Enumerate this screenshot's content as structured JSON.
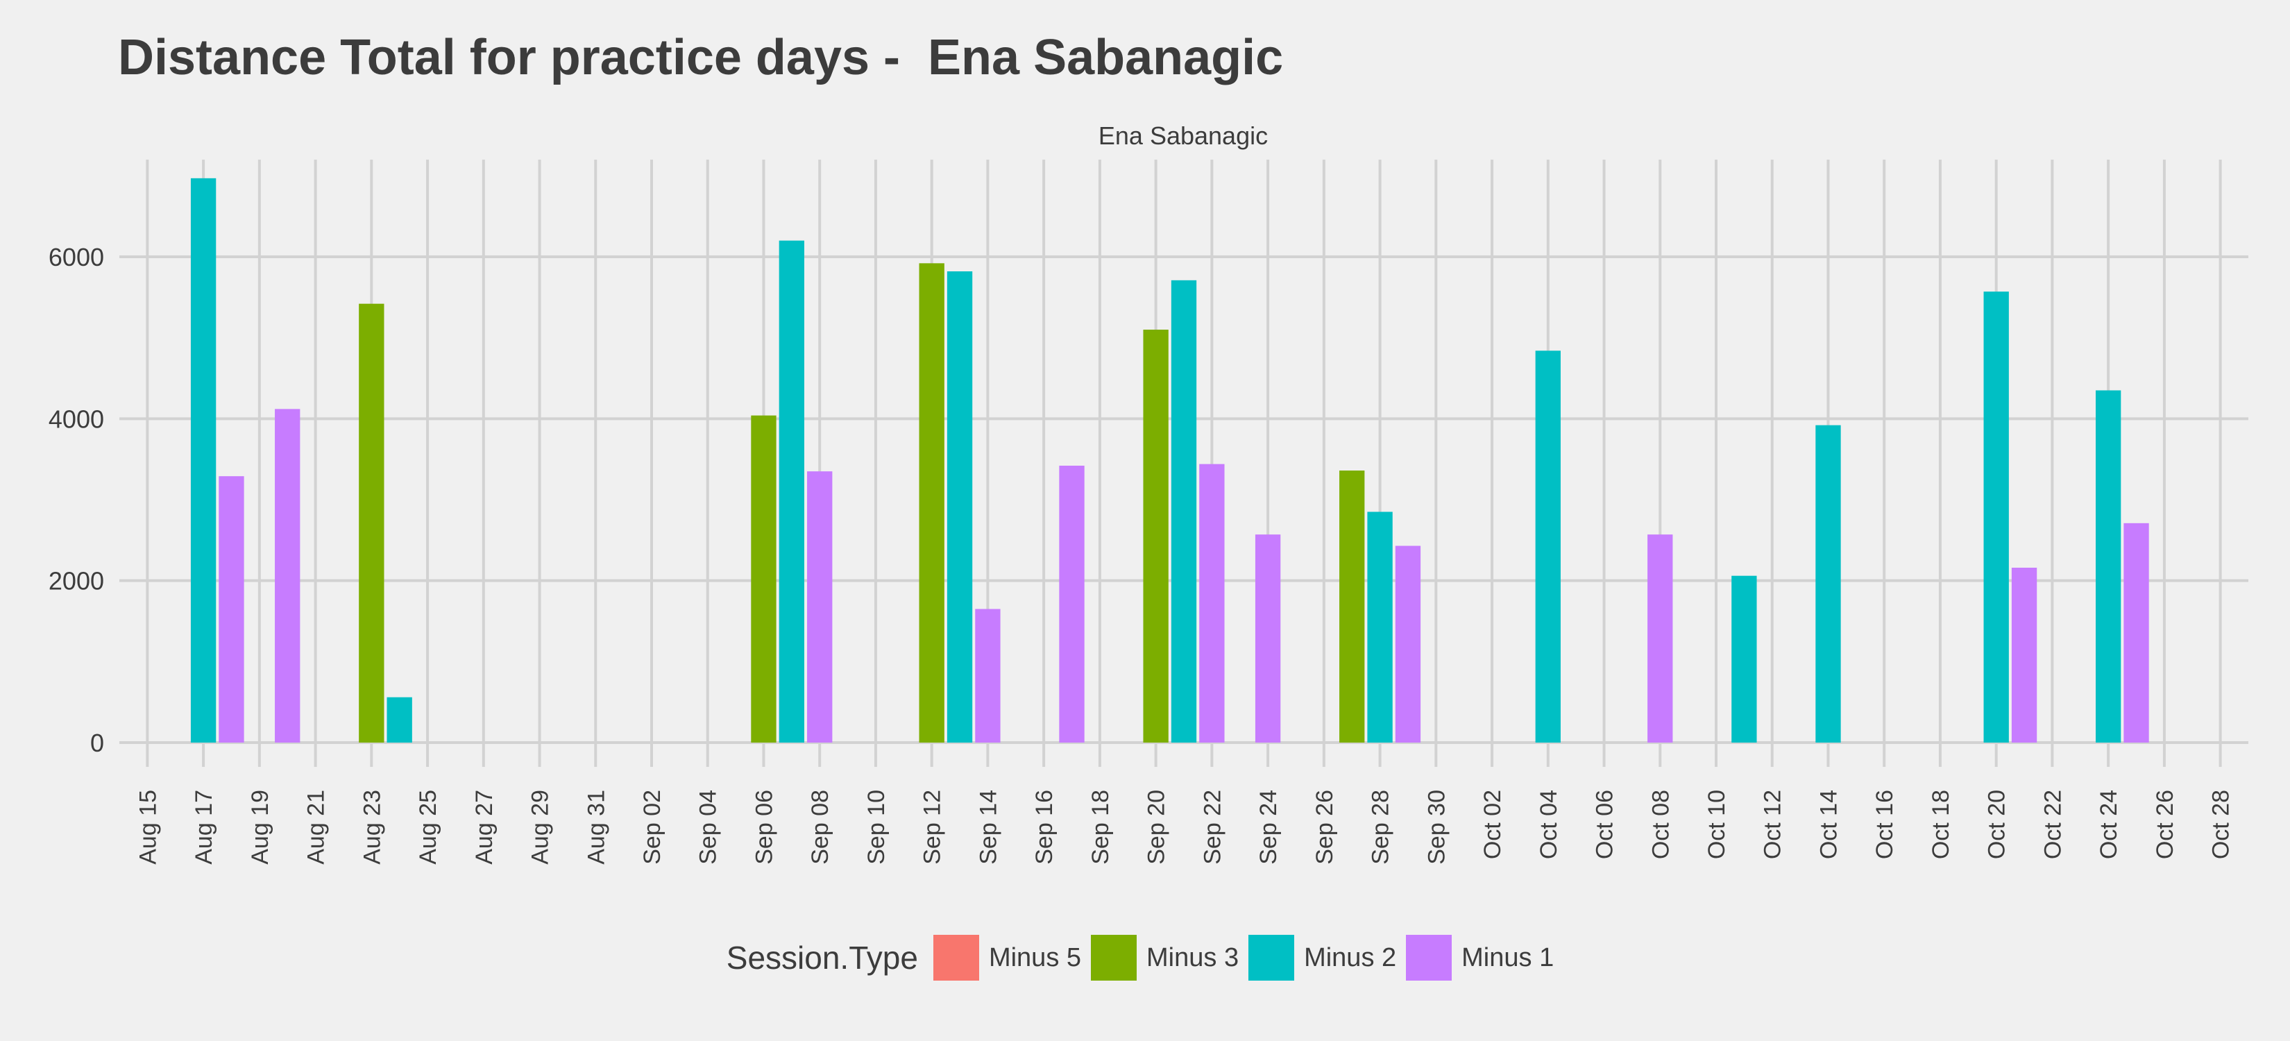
{
  "chart_data": {
    "type": "bar",
    "title": "Distance Total for practice days -  Ena Sabanagic",
    "facet_label": "Ena Sabanagic",
    "xlabel": "",
    "ylabel": "",
    "x_axis": "date",
    "x_range": [
      "2018-08-14",
      "2018-10-29"
    ],
    "x_ticks": [
      {
        "date": "2018-08-15",
        "label": "Aug 15"
      },
      {
        "date": "2018-08-17",
        "label": "Aug 17"
      },
      {
        "date": "2018-08-19",
        "label": "Aug 19"
      },
      {
        "date": "2018-08-21",
        "label": "Aug 21"
      },
      {
        "date": "2018-08-23",
        "label": "Aug 23"
      },
      {
        "date": "2018-08-25",
        "label": "Aug 25"
      },
      {
        "date": "2018-08-27",
        "label": "Aug 27"
      },
      {
        "date": "2018-08-29",
        "label": "Aug 29"
      },
      {
        "date": "2018-08-31",
        "label": "Aug 31"
      },
      {
        "date": "2018-09-02",
        "label": "Sep 02"
      },
      {
        "date": "2018-09-04",
        "label": "Sep 04"
      },
      {
        "date": "2018-09-06",
        "label": "Sep 06"
      },
      {
        "date": "2018-09-08",
        "label": "Sep 08"
      },
      {
        "date": "2018-09-10",
        "label": "Sep 10"
      },
      {
        "date": "2018-09-12",
        "label": "Sep 12"
      },
      {
        "date": "2018-09-14",
        "label": "Sep 14"
      },
      {
        "date": "2018-09-16",
        "label": "Sep 16"
      },
      {
        "date": "2018-09-18",
        "label": "Sep 18"
      },
      {
        "date": "2018-09-20",
        "label": "Sep 20"
      },
      {
        "date": "2018-09-22",
        "label": "Sep 22"
      },
      {
        "date": "2018-09-24",
        "label": "Sep 24"
      },
      {
        "date": "2018-09-26",
        "label": "Sep 26"
      },
      {
        "date": "2018-09-28",
        "label": "Sep 28"
      },
      {
        "date": "2018-09-30",
        "label": "Sep 30"
      },
      {
        "date": "2018-10-02",
        "label": "Oct 02"
      },
      {
        "date": "2018-10-04",
        "label": "Oct 04"
      },
      {
        "date": "2018-10-06",
        "label": "Oct 06"
      },
      {
        "date": "2018-10-08",
        "label": "Oct 08"
      },
      {
        "date": "2018-10-10",
        "label": "Oct 10"
      },
      {
        "date": "2018-10-12",
        "label": "Oct 12"
      },
      {
        "date": "2018-10-14",
        "label": "Oct 14"
      },
      {
        "date": "2018-10-16",
        "label": "Oct 16"
      },
      {
        "date": "2018-10-18",
        "label": "Oct 18"
      },
      {
        "date": "2018-10-20",
        "label": "Oct 20"
      },
      {
        "date": "2018-10-22",
        "label": "Oct 22"
      },
      {
        "date": "2018-10-24",
        "label": "Oct 24"
      },
      {
        "date": "2018-10-26",
        "label": "Oct 26"
      },
      {
        "date": "2018-10-28",
        "label": "Oct 28"
      }
    ],
    "ylim": [
      -300,
      7200
    ],
    "y_ticks": [
      0,
      2000,
      4000,
      6000
    ],
    "grid": true,
    "legend_position": "bottom",
    "legend_title": "Session.Type",
    "series": [
      {
        "name": "Minus 5",
        "color": "#F8766D",
        "points": []
      },
      {
        "name": "Minus 3",
        "color": "#7CAE00",
        "points": [
          {
            "x": "2018-08-23",
            "y": 5420
          },
          {
            "x": "2018-09-06",
            "y": 4040
          },
          {
            "x": "2018-09-12",
            "y": 5920
          },
          {
            "x": "2018-09-20",
            "y": 5100
          },
          {
            "x": "2018-09-27",
            "y": 3360
          }
        ]
      },
      {
        "name": "Minus 2",
        "color": "#00BFC4",
        "points": [
          {
            "x": "2018-08-17",
            "y": 6970
          },
          {
            "x": "2018-08-24",
            "y": 560
          },
          {
            "x": "2018-09-07",
            "y": 6200
          },
          {
            "x": "2018-09-13",
            "y": 5820
          },
          {
            "x": "2018-09-21",
            "y": 5710
          },
          {
            "x": "2018-09-28",
            "y": 2850
          },
          {
            "x": "2018-10-04",
            "y": 4840
          },
          {
            "x": "2018-10-11",
            "y": 2060
          },
          {
            "x": "2018-10-14",
            "y": 3920
          },
          {
            "x": "2018-10-20",
            "y": 5570
          },
          {
            "x": "2018-10-24",
            "y": 4350
          }
        ]
      },
      {
        "name": "Minus 1",
        "color": "#C77CFF",
        "points": [
          {
            "x": "2018-08-18",
            "y": 3290
          },
          {
            "x": "2018-08-20",
            "y": 4120
          },
          {
            "x": "2018-09-08",
            "y": 3350
          },
          {
            "x": "2018-09-14",
            "y": 1650
          },
          {
            "x": "2018-09-17",
            "y": 3420
          },
          {
            "x": "2018-09-22",
            "y": 3440
          },
          {
            "x": "2018-09-24",
            "y": 2570
          },
          {
            "x": "2018-09-29",
            "y": 2430
          },
          {
            "x": "2018-10-08",
            "y": 2570
          },
          {
            "x": "2018-10-21",
            "y": 2160
          },
          {
            "x": "2018-10-25",
            "y": 2710
          }
        ]
      }
    ]
  }
}
